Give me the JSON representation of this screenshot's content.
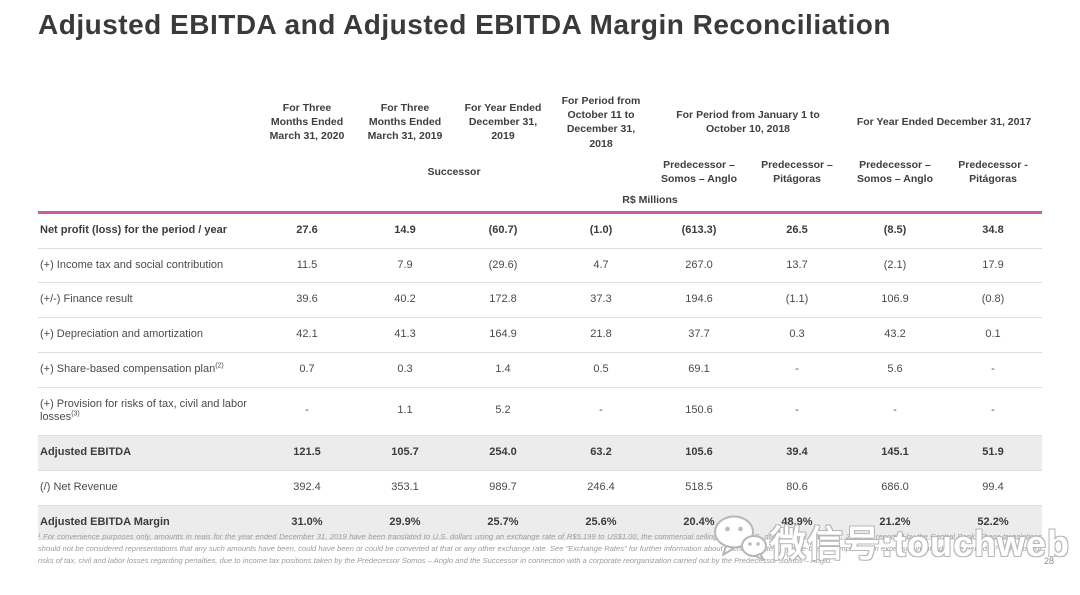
{
  "title": "Adjusted EBITDA and Adjusted EBITDA Margin Reconciliation",
  "table": {
    "period_headers": [
      {
        "label": "For Three Months Ended March 31, 2020",
        "span": 1
      },
      {
        "label": "For Three Months Ended March 31, 2019",
        "span": 1
      },
      {
        "label": "For Year Ended December 31, 2019",
        "span": 1
      },
      {
        "label": "For Period from October 11 to December 31, 2018",
        "span": 1
      },
      {
        "label": "For Period from January 1 to October 10, 2018",
        "span": 2
      },
      {
        "label": "For Year Ended December 31, 2017",
        "span": 2
      }
    ],
    "group_headers": [
      {
        "label": "Successor",
        "span": 4
      },
      {
        "label": "Predecessor – Somos – Anglo",
        "span": 1
      },
      {
        "label": "Predecessor – Pitágoras",
        "span": 1
      },
      {
        "label": "Predecessor – Somos – Anglo",
        "span": 1
      },
      {
        "label": "Predecessor - Pitágoras",
        "span": 1
      }
    ],
    "units_label": "R$ Millions",
    "rows": [
      {
        "label": "Net profit (loss) for the period / year",
        "sup": "",
        "bold": true,
        "shaded": false,
        "values": [
          "27.6",
          "14.9",
          "(60.7)",
          "(1.0)",
          "(613.3)",
          "26.5",
          "(8.5)",
          "34.8"
        ]
      },
      {
        "label": "(+) Income tax and social contribution",
        "sup": "",
        "bold": false,
        "shaded": false,
        "values": [
          "11.5",
          "7.9",
          "(29.6)",
          "4.7",
          "267.0",
          "13.7",
          "(2.1)",
          "17.9"
        ]
      },
      {
        "label": "(+/-) Finance result",
        "sup": "",
        "bold": false,
        "shaded": false,
        "values": [
          "39.6",
          "40.2",
          "172.8",
          "37.3",
          "194.6",
          "(1.1)",
          "106.9",
          "(0.8)"
        ]
      },
      {
        "label": "(+) Depreciation and amortization",
        "sup": "",
        "bold": false,
        "shaded": false,
        "values": [
          "42.1",
          "41.3",
          "164.9",
          "21.8",
          "37.7",
          "0.3",
          "43.2",
          "0.1"
        ]
      },
      {
        "label": "(+) Share-based compensation plan",
        "sup": "(2)",
        "bold": false,
        "shaded": false,
        "values": [
          "0.7",
          "0.3",
          "1.4",
          "0.5",
          "69.1",
          "-",
          "5.6",
          "-"
        ]
      },
      {
        "label": "(+) Provision for risks of tax, civil and labor losses",
        "sup": "(3)",
        "bold": false,
        "shaded": false,
        "values": [
          "-",
          "1.1",
          "5.2",
          "-",
          "150.6",
          "-",
          "-",
          "-"
        ]
      },
      {
        "label": "Adjusted EBITDA",
        "sup": "",
        "bold": true,
        "shaded": true,
        "values": [
          "121.5",
          "105.7",
          "254.0",
          "63.2",
          "105.6",
          "39.4",
          "145.1",
          "51.9"
        ]
      },
      {
        "label": "(/) Net Revenue",
        "sup": "",
        "bold": false,
        "shaded": false,
        "values": [
          "392.4",
          "353.1",
          "989.7",
          "246.4",
          "518.5",
          "80.6",
          "686.0",
          "99.4"
        ]
      },
      {
        "label": "Adjusted EBITDA Margin",
        "sup": "",
        "bold": true,
        "shaded": true,
        "values": [
          "31.0%",
          "29.9%",
          "25.7%",
          "25.6%",
          "20.4%",
          "48.9%",
          "21.2%",
          "52.2%"
        ]
      }
    ]
  },
  "footnote": "¹ For convenience purposes only, amounts in reais for the year ended December 31, 2019 have been translated to U.S. dollars using an exchange rate of R$5.199 to US$1.00, the commercial selling rate for U.S. dollars as of March 31, 2020 as reported by the Central Bank. These translations should not be considered representations that any such amounts have been, could have been or could be converted at that or any other exchange rate. See \"Exchange Rates\" for further information about exchange rates. ² Share-based compensation expenses incurred in the periods. ³ Provision for risks of tax, civil and labor losses regarding penalties, due to income tax positions taken by the Predecessor Somos – Anglo and the Successor in connection with a corporate reorganization carried out by the Predecessor Somos – Anglo.",
  "watermark": {
    "text": "微信号:touchweb"
  },
  "page_number": "28",
  "colors": {
    "accent": "#cb5c9f",
    "row_shade": "#ececec",
    "title_text": "#3a3a3a",
    "body_text": "#4a4a4a",
    "footnote_text": "#9b9b9b"
  }
}
